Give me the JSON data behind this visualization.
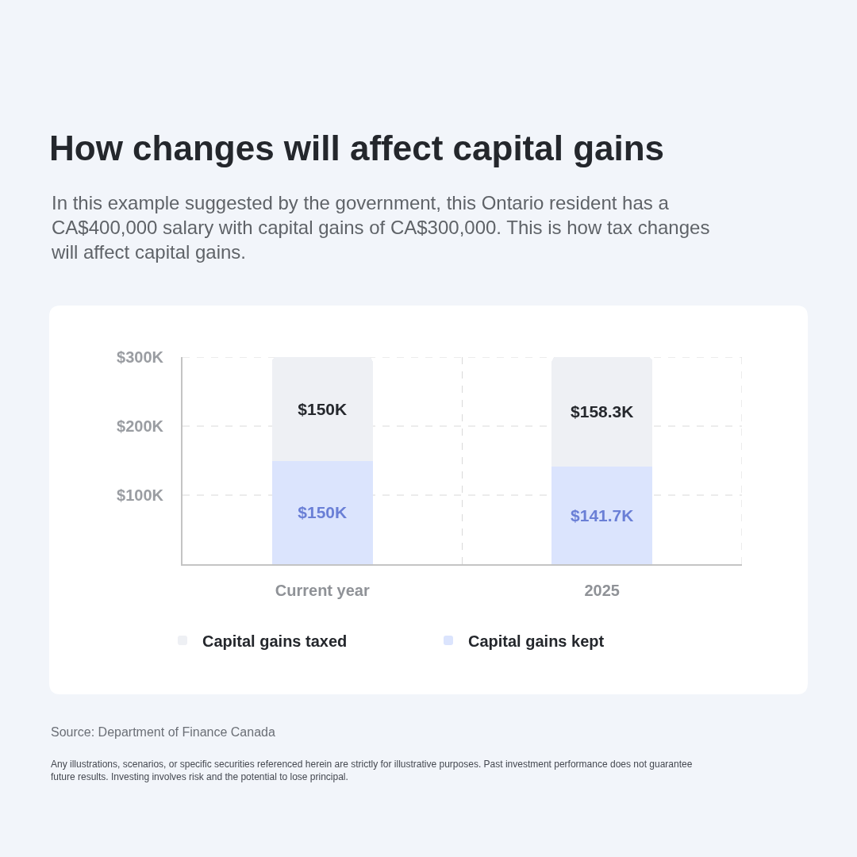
{
  "chart_data": {
    "type": "bar",
    "title": "How changes will affect capital gains",
    "subtitle": "In this example suggested by the government, this Ontario resident has a CA$400,000 salary with capital gains of CA$300,000. This is how tax changes will affect capital gains.",
    "categories": [
      "Current year",
      "2025"
    ],
    "stacked": true,
    "series": [
      {
        "name": "Capital gains kept",
        "color": "#dbe4fd",
        "values": [
          150,
          141.7
        ],
        "value_labels": [
          "$150K",
          "$141.7K"
        ]
      },
      {
        "name": "Capital gains taxed",
        "color": "#eef0f4",
        "values": [
          150,
          158.3
        ],
        "value_labels": [
          "$150K",
          "$158.3K"
        ]
      }
    ],
    "ylim": [
      0,
      300
    ],
    "yticks": [
      {
        "value": 100,
        "label": "$100K"
      },
      {
        "value": 200,
        "label": "$200K"
      },
      {
        "value": 300,
        "label": "$300K"
      }
    ],
    "grid": true,
    "legend": "bottom",
    "annotations": [
      "Source: Department of Finance Canada",
      "Any illustrations, scenarios, or specific securities referenced herein are strictly for illustrative purposes. Past investment performance does not guarantee future results. Investing involves risk and the potential to lose principal."
    ]
  }
}
